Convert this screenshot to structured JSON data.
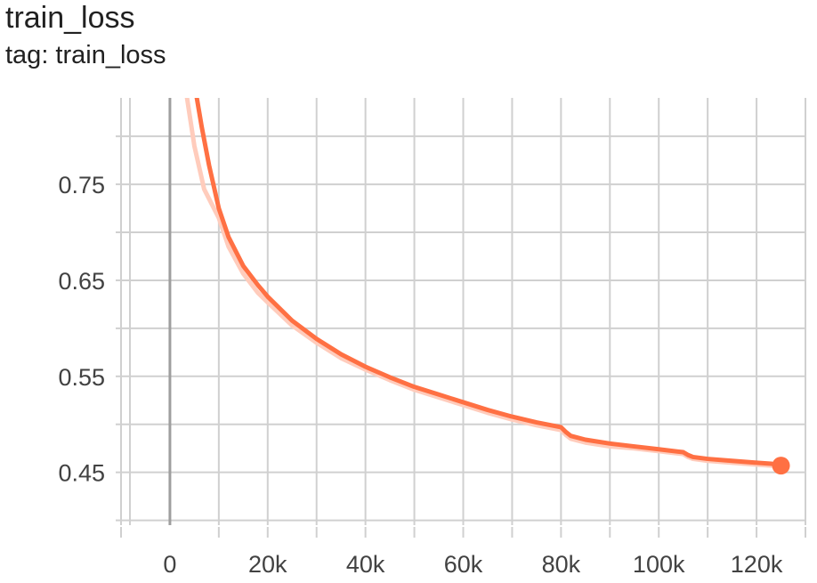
{
  "card": {
    "title": "train_loss",
    "subtitle": "tag: train_loss"
  },
  "colors": {
    "series": "#ff7043",
    "series_raw": "#ffccbc",
    "grid": "#d0d0d0",
    "zero_axis": "#9e9e9e",
    "tick_text": "#424242"
  },
  "chart_data": {
    "type": "line",
    "title": "train_loss",
    "subtitle": "tag: train_loss",
    "xlabel": "",
    "ylabel": "",
    "xlim": [
      -10000,
      130000
    ],
    "ylim": [
      0.395,
      0.84
    ],
    "x_ticks": [
      0,
      20000,
      40000,
      60000,
      80000,
      100000,
      120000
    ],
    "x_tick_labels": [
      "0",
      "20k",
      "40k",
      "60k",
      "80k",
      "100k",
      "120k"
    ],
    "y_ticks": [
      0.45,
      0.55,
      0.65,
      0.75
    ],
    "y_tick_labels": [
      "0.45",
      "0.55",
      "0.65",
      "0.75"
    ],
    "grid": true,
    "legend": "none",
    "series": [
      {
        "role": "smoothed",
        "x": [
          5500,
          6500,
          8000,
          10000,
          12000,
          15000,
          18000,
          20000,
          25000,
          30000,
          35000,
          40000,
          45000,
          50000,
          55000,
          60000,
          65000,
          70000,
          75000,
          80000,
          81000,
          82000,
          85000,
          90000,
          95000,
          100000,
          105000,
          106000,
          107000,
          110000,
          115000,
          120000,
          123000,
          125000
        ],
        "y": [
          0.84,
          0.81,
          0.77,
          0.725,
          0.695,
          0.665,
          0.645,
          0.633,
          0.608,
          0.589,
          0.573,
          0.56,
          0.549,
          0.539,
          0.531,
          0.523,
          0.515,
          0.508,
          0.502,
          0.497,
          0.492,
          0.488,
          0.484,
          0.48,
          0.477,
          0.474,
          0.471,
          0.468,
          0.466,
          0.464,
          0.462,
          0.46,
          0.459,
          0.457
        ]
      },
      {
        "role": "raw",
        "x": [
          3500,
          5000,
          7000,
          10000,
          12000,
          15000,
          18000,
          20000,
          25000,
          30000,
          35000,
          40000,
          45000,
          50000,
          55000,
          60000,
          65000,
          70000,
          75000,
          80000,
          81000,
          82000,
          85000,
          90000,
          95000,
          100000,
          105000,
          106000,
          107000,
          110000,
          115000,
          120000,
          123000,
          125000
        ],
        "y": [
          0.84,
          0.79,
          0.745,
          0.715,
          0.685,
          0.657,
          0.637,
          0.627,
          0.603,
          0.585,
          0.569,
          0.557,
          0.546,
          0.536,
          0.528,
          0.52,
          0.512,
          0.505,
          0.499,
          0.494,
          0.489,
          0.485,
          0.481,
          0.477,
          0.475,
          0.472,
          0.469,
          0.466,
          0.464,
          0.462,
          0.46,
          0.458,
          0.457,
          0.456
        ]
      }
    ],
    "last_point": {
      "x": 125000,
      "y": 0.457
    }
  }
}
